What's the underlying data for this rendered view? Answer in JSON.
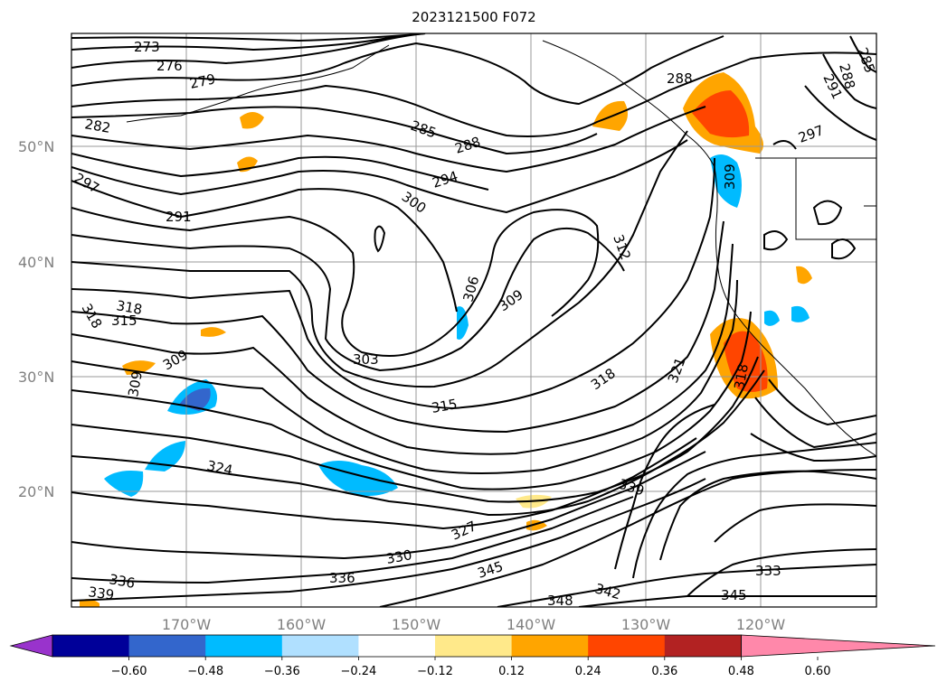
{
  "title": "2023121500 F072",
  "map": {
    "lat_ticks": [
      "50°N",
      "40°N",
      "30°N",
      "20°N"
    ],
    "lon_ticks": [
      "170°W",
      "160°W",
      "150°W",
      "140°W",
      "130°W",
      "120°W"
    ],
    "contour_labels": [
      "273",
      "276",
      "279",
      "282",
      "285",
      "288",
      "294",
      "300",
      "291",
      "297",
      "312",
      "306",
      "309",
      "303",
      "318",
      "315",
      "318",
      "309",
      "309",
      "315",
      "318",
      "321",
      "324",
      "327",
      "330",
      "336",
      "339",
      "336",
      "339",
      "345",
      "348",
      "342",
      "345",
      "333",
      "309",
      "288",
      "291",
      "288",
      "297",
      "285",
      "318"
    ]
  },
  "colorbar": {
    "colors": [
      "#9933cc",
      "#000099",
      "#3366cc",
      "#00bbff",
      "#b0e0ff",
      "#ffffff",
      "#ffe98a",
      "#ffa500",
      "#ff4500",
      "#b22222",
      "#ff88aa"
    ],
    "tick_labels": [
      "−0.60",
      "−0.48",
      "−0.36",
      "−0.24",
      "−0.12",
      "0.12",
      "0.24",
      "0.36",
      "0.48",
      "0.60"
    ]
  }
}
